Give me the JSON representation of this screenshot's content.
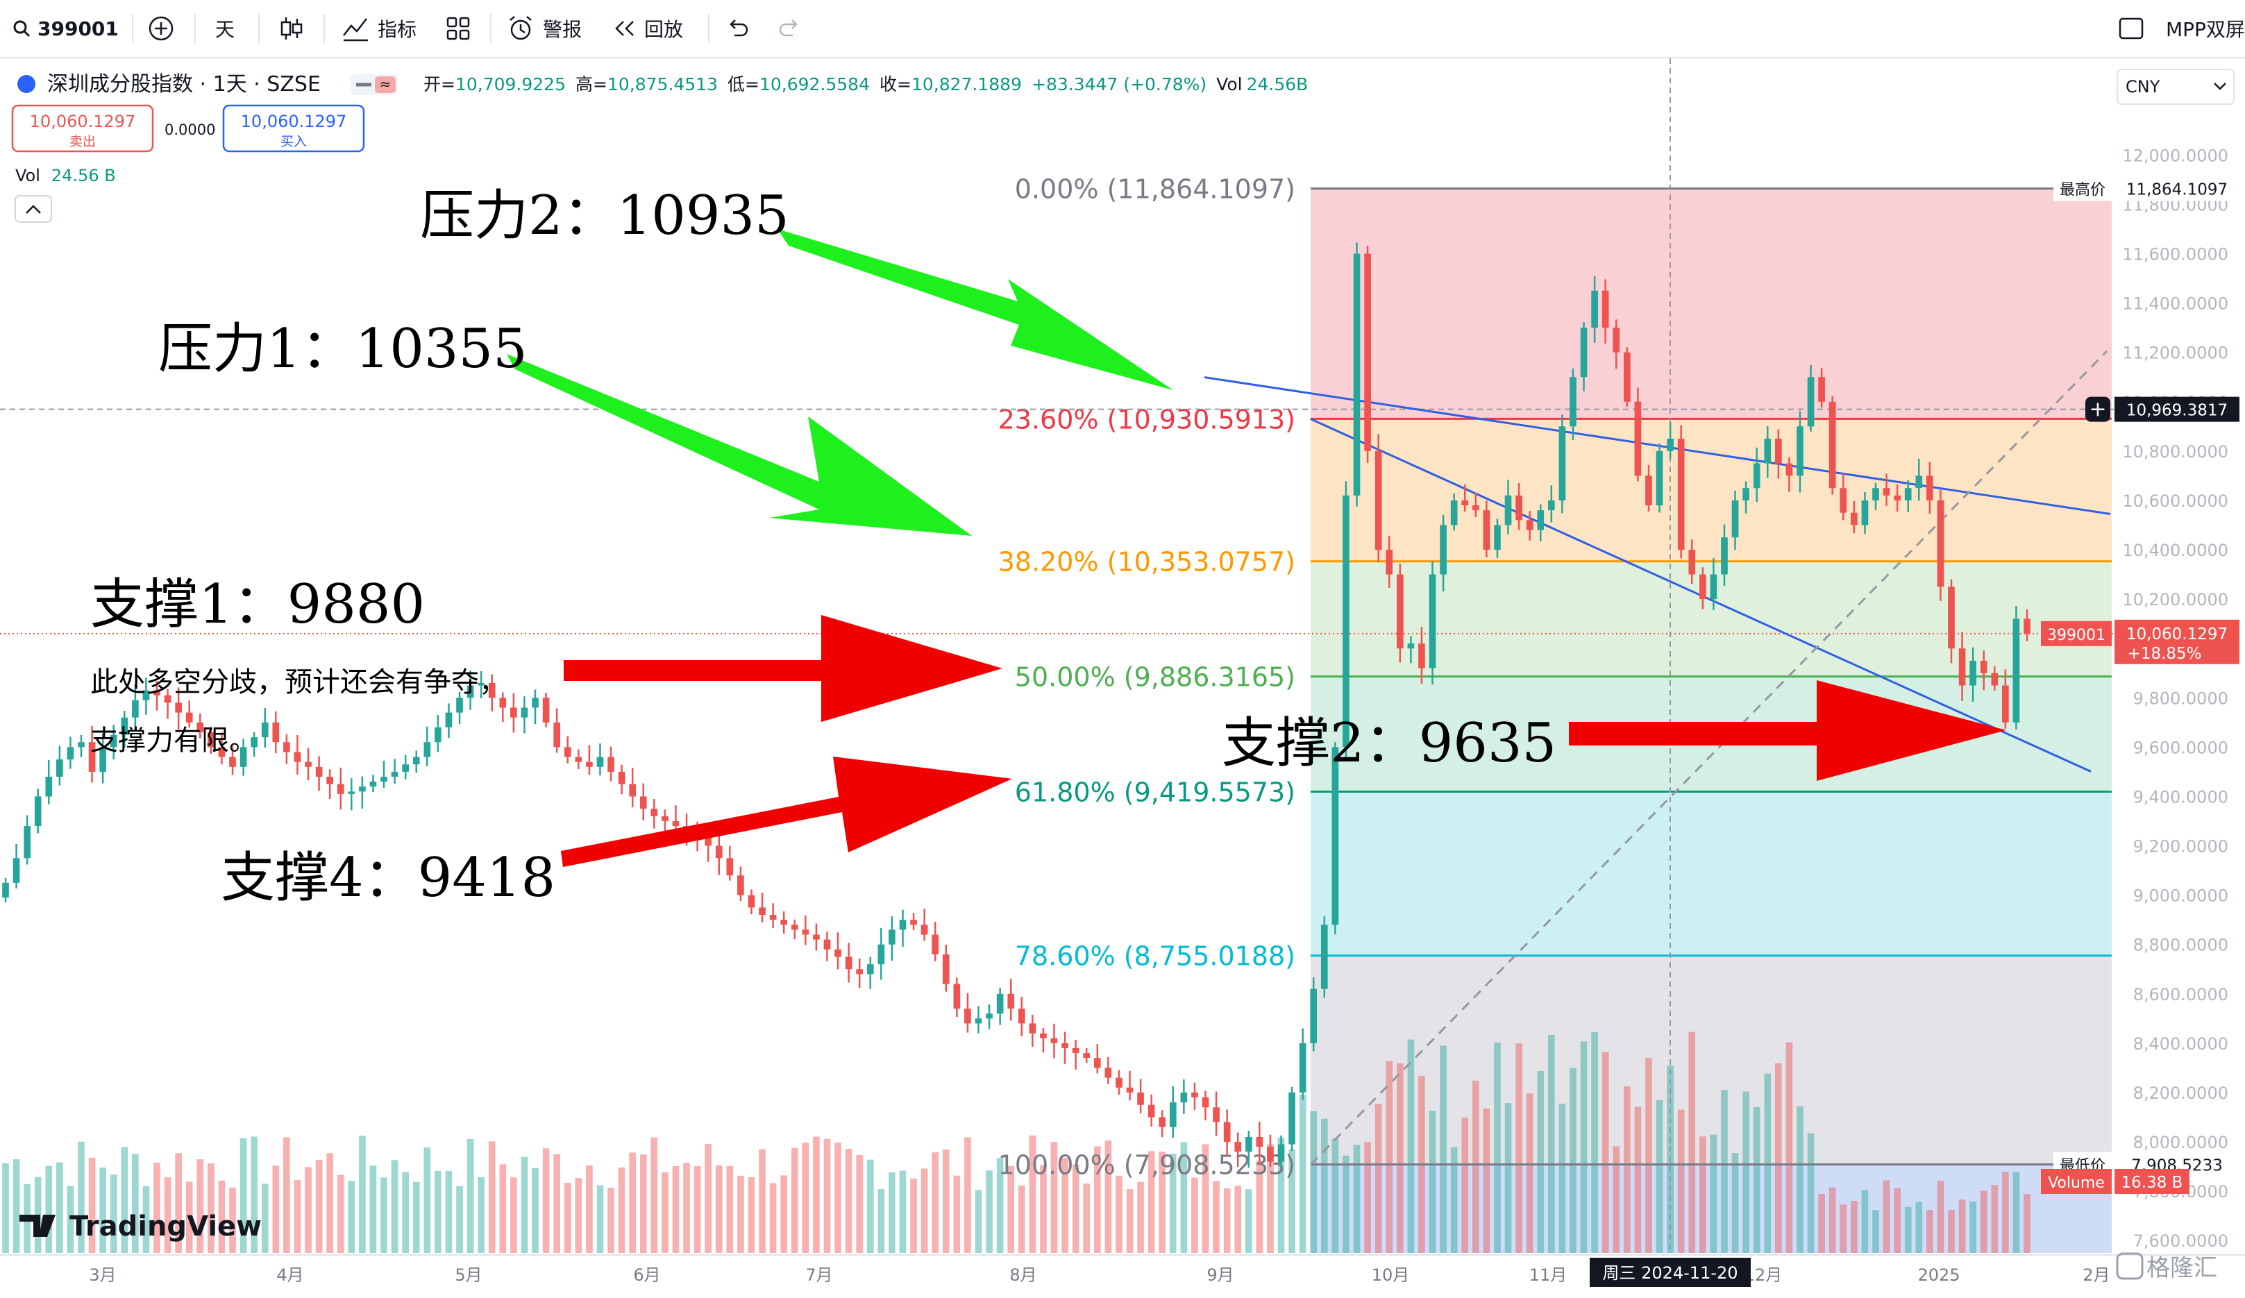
{
  "toolbar": {
    "symbol": "399001",
    "interval": "天",
    "indicators": "指标",
    "alert": "警报",
    "replay": "回放",
    "right_label": "MPP双屏"
  },
  "header": {
    "name": "深圳成分股指数 · 1天 · SZSE",
    "open_label": "开=",
    "open": "10,709.9225",
    "high_label": "高=",
    "high": "10,875.4513",
    "low_label": "低=",
    "low": "10,692.5584",
    "close_label": "收=",
    "close": "10,827.1889",
    "change": "+83.3447 (+0.78%)",
    "vol_label": "Vol",
    "vol": "24.56B",
    "sell_price": "10,060.1297",
    "sell_label": "卖出",
    "spread": "0.0000",
    "buy_price": "10,060.1297",
    "buy_label": "买入",
    "vol_row_label": "Vol",
    "vol_row_value": "24.56 B",
    "currency": "CNY"
  },
  "annotations": {
    "pressure2": "压力2：10935",
    "pressure1": "压力1：10355",
    "support1": "支撑1：9880",
    "support_note_line1": "此处多空分歧，预计还会有争夺，",
    "support_note_line2": "支撑力有限。",
    "support2": "支撑2：9635",
    "support4": "支撑4：9418"
  },
  "watermark": "TradingView",
  "corner_logo": "格隆汇",
  "colors": {
    "up": "#26a69a",
    "down": "#ef5350",
    "channel": "#2f5fe3",
    "arrow_green": "#1ef01e",
    "arrow_red": "#f00000"
  },
  "chart_data": {
    "type": "candlestick",
    "symbol": "399001",
    "y_range": [
      7550,
      12150
    ],
    "y_ticks": [
      "12,000.0000",
      "11,800.0000",
      "11,600.0000",
      "11,400.0000",
      "11,200.0000",
      "11,000.0000",
      "10,800.0000",
      "10,600.0000",
      "10,400.0000",
      "10,200.0000",
      "10,000.0000",
      "9,800.0000",
      "9,600.0000",
      "9,400.0000",
      "9,200.0000",
      "9,000.0000",
      "8,800.0000",
      "8,600.0000",
      "8,400.0000",
      "8,200.0000",
      "8,000.0000",
      "7,800.0000",
      "7,600.0000"
    ],
    "y_tick_values": [
      12000,
      11800,
      11600,
      11400,
      11200,
      11000,
      10800,
      10600,
      10400,
      10200,
      10000,
      9800,
      9600,
      9400,
      9200,
      9000,
      8800,
      8600,
      8400,
      8200,
      8000,
      7800,
      7600
    ],
    "x_labels": [
      "3月",
      "4月",
      "5月",
      "6月",
      "7月",
      "8月",
      "9月",
      "10月",
      "11月",
      "12月",
      "2025",
      "2月"
    ],
    "crosshair_date": "周三 2024-11-20",
    "fibonacci": [
      {
        "level": "0.00%",
        "price": "11,864.1097",
        "value": 11864.11,
        "color": "#787b86"
      },
      {
        "level": "23.60%",
        "price": "10,930.5913",
        "value": 10930.59,
        "color": "#f23645"
      },
      {
        "level": "38.20%",
        "price": "10,353.0757",
        "value": 10353.08,
        "color": "#ff9800"
      },
      {
        "level": "50.00%",
        "price": "9,886.3165",
        "value": 9886.32,
        "color": "#4caf50"
      },
      {
        "level": "61.80%",
        "price": "9,419.5573",
        "value": 9419.56,
        "color": "#089981"
      },
      {
        "level": "78.60%",
        "price": "8,755.0188",
        "value": 8755.02,
        "color": "#00bcd4"
      },
      {
        "level": "100.00%",
        "price": "7,908.5233",
        "value": 7908.52,
        "color": "#787b86"
      }
    ],
    "price_tags": {
      "high_label": "最高价",
      "high": "11,864.1097",
      "low_label": "最低价",
      "low": "7,908.5233",
      "crosshair_price": "10,969.3817",
      "last_symbol": "399001",
      "last_price": "10,060.1297",
      "last_change": "+18.85%",
      "volume_label": "Volume",
      "volume_value": "16.38 B"
    },
    "closes": [
      9050,
      9150,
      9280,
      9400,
      9480,
      9550,
      9600,
      9620,
      9500,
      9600,
      9650,
      9720,
      9790,
      9830,
      9810,
      9780,
      9740,
      9700,
      9660,
      9600,
      9560,
      9520,
      9600,
      9640,
      9700,
      9620,
      9580,
      9540,
      9520,
      9480,
      9450,
      9410,
      9420,
      9440,
      9460,
      9480,
      9500,
      9530,
      9560,
      9620,
      9680,
      9740,
      9800,
      9850,
      9860,
      9800,
      9760,
      9720,
      9760,
      9800,
      9700,
      9600,
      9560,
      9540,
      9520,
      9560,
      9500,
      9450,
      9400,
      9350,
      9320,
      9300,
      9280,
      9260,
      9240,
      9200,
      9150,
      9080,
      9000,
      8950,
      8920,
      8900,
      8880,
      8860,
      8840,
      8820,
      8780,
      8750,
      8700,
      8680,
      8720,
      8800,
      8860,
      8900,
      8880,
      8840,
      8760,
      8640,
      8540,
      8480,
      8500,
      8520,
      8600,
      8540,
      8480,
      8440,
      8420,
      8400,
      8380,
      8360,
      8340,
      8300,
      8260,
      8220,
      8200,
      8150,
      8100,
      8060,
      8160,
      8200,
      8180,
      8140,
      8080,
      8000,
      7960,
      8020,
      7980,
      7920,
      7990,
      8200,
      8400,
      8620,
      8880,
      9600,
      10620,
      11600,
      10800,
      10400,
      10300,
      10000,
      10020,
      9920,
      10300,
      10500,
      10600,
      10580,
      10560,
      10400,
      10500,
      10620,
      10520,
      10480,
      10560,
      10600,
      10900,
      11100,
      11300,
      11450,
      11300,
      11200,
      11000,
      10700,
      10580,
      10800,
      10850,
      10400,
      10300,
      10200,
      10300,
      10450,
      10600,
      10650,
      10750,
      10850,
      10750,
      10700,
      10900,
      11100,
      11000,
      10650,
      10550,
      10500,
      10600,
      10650,
      10620,
      10600,
      10650,
      10700,
      10600,
      10250,
      10000,
      9850,
      9950,
      9900,
      9850,
      9700,
      10120,
      10060
    ]
  }
}
